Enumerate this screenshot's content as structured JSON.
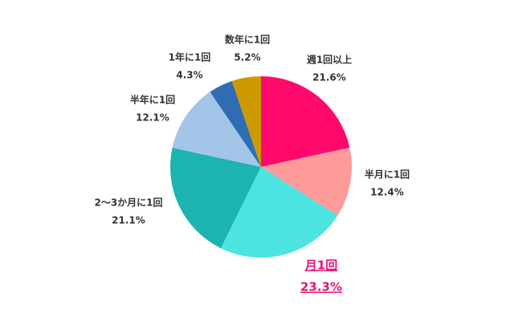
{
  "chart_data": {
    "type": "pie",
    "categories": [
      "週1回以上",
      "半月に1回",
      "月1回",
      "2〜3か月に1回",
      "半年に1回",
      "1年に1回",
      "数年に1回"
    ],
    "values": [
      21.6,
      12.4,
      23.3,
      21.1,
      12.1,
      4.3,
      5.2
    ],
    "value_labels": [
      "21.6%",
      "12.4%",
      "23.3%",
      "21.1%",
      "12.1%",
      "4.3%",
      "5.2%"
    ],
    "colors": [
      "#ff0a6c",
      "#ff9b9b",
      "#4de3e0",
      "#1cb3b0",
      "#a3c5e8",
      "#2f6db3",
      "#cc9a00"
    ]
  }
}
